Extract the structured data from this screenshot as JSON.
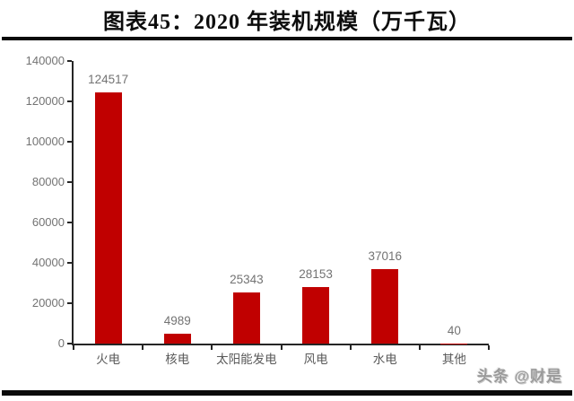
{
  "page": {
    "watermark": "头条 @财是"
  },
  "chart_data": {
    "type": "bar",
    "title": "图表45：2020 年装机规模（万千瓦）",
    "categories": [
      "火电",
      "核电",
      "太阳能发电",
      "风电",
      "水电",
      "其他"
    ],
    "values": [
      124517,
      4989,
      25343,
      28153,
      37016,
      40
    ],
    "value_labels": [
      "124517",
      "4989",
      "25343",
      "28153",
      "37016",
      "40"
    ],
    "yticks": [
      0,
      20000,
      40000,
      60000,
      80000,
      100000,
      120000,
      140000
    ],
    "ylim": [
      0,
      140000
    ],
    "xlabel": "",
    "ylabel": "",
    "grid": false,
    "legend": "none",
    "bar_color": "#c00000",
    "axis_color": "#262626",
    "label_color": "#737373"
  }
}
